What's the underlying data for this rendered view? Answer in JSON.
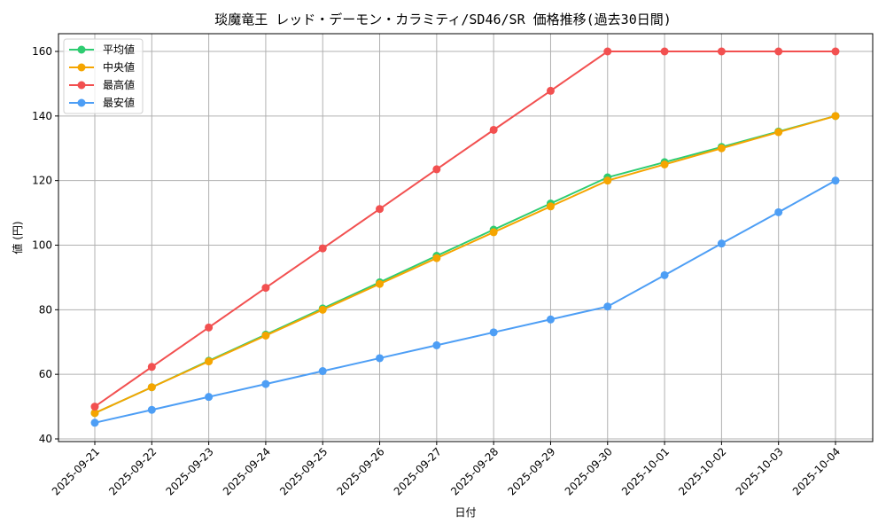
{
  "title": "琰魔竜王 レッド・デーモン・カラミティ/SD46/SR 価格推移(過去30日間)",
  "chart_data": {
    "type": "line",
    "title": "琰魔竜王 レッド・デーモン・カラミティ/SD46/SR 価格推移(過去30日間)",
    "xlabel": "日付",
    "ylabel": "値 (円)",
    "ylim": [
      40,
      160
    ],
    "yticks": [
      40,
      60,
      80,
      100,
      120,
      140,
      160
    ],
    "grid": true,
    "legend_position": "upper left",
    "categories": [
      "2025-09-21",
      "2025-09-22",
      "2025-09-23",
      "2025-09-24",
      "2025-09-25",
      "2025-09-26",
      "2025-09-27",
      "2025-09-28",
      "2025-09-29",
      "2025-09-30",
      "2025-10-01",
      "2025-10-02",
      "2025-10-03",
      "2025-10-04"
    ],
    "series": [
      {
        "name": "平均値",
        "color": "#2ecc71",
        "values": [
          48,
          56,
          64.2,
          72.3,
          80.4,
          88.5,
          96.7,
          104.8,
          112.9,
          121,
          125.7,
          130.4,
          135.2,
          140
        ]
      },
      {
        "name": "中央値",
        "color": "#f5a500",
        "values": [
          48,
          56,
          64,
          72,
          80,
          88,
          96,
          104,
          112,
          120,
          125,
          130,
          135,
          140
        ]
      },
      {
        "name": "最高値",
        "color": "#f25050",
        "values": [
          50,
          62.3,
          74.5,
          86.8,
          99,
          111.2,
          123.5,
          135.7,
          147.8,
          160,
          160,
          160,
          160,
          160
        ]
      },
      {
        "name": "最安値",
        "color": "#4d9ef5",
        "values": [
          45,
          49,
          53,
          57,
          61,
          65,
          69,
          73,
          77,
          81,
          90.7,
          100.5,
          110.2,
          120
        ]
      }
    ]
  }
}
